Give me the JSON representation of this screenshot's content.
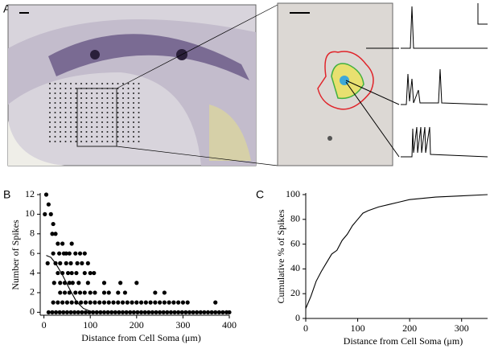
{
  "panel_labels": [
    "A",
    "B",
    "C"
  ],
  "chart_data": [
    {
      "type": "scatter",
      "xlabel": "Distance from Cell Soma (μm)",
      "ylabel": "Number of Spikes",
      "xlim": [
        -8,
        400
      ],
      "xticks": [
        0,
        100,
        200,
        300,
        400
      ],
      "ylim": [
        -0.3,
        12
      ],
      "yticks": [
        0,
        2,
        4,
        6,
        8,
        10,
        12
      ],
      "series": [
        {
          "kind": "markers",
          "color": "#000000",
          "x": [
            10,
            18,
            26,
            34,
            42,
            50,
            58,
            66,
            74,
            82,
            90,
            98,
            106,
            114,
            122,
            130,
            138,
            146,
            154,
            162,
            170,
            178,
            186,
            194,
            202,
            210,
            218,
            226,
            234,
            242,
            250,
            258,
            266,
            274,
            282,
            290,
            298,
            306,
            314,
            322,
            330,
            338,
            346,
            354,
            362,
            370,
            378,
            386,
            394,
            400,
            20,
            30,
            40,
            50,
            60,
            70,
            80,
            90,
            100,
            110,
            120,
            130,
            140,
            150,
            160,
            170,
            180,
            190,
            200,
            210,
            220,
            230,
            240,
            250,
            260,
            270,
            280,
            290,
            300,
            310,
            370,
            35,
            45,
            55,
            68,
            78,
            88,
            100,
            110,
            130,
            140,
            160,
            175,
            240,
            260,
            22,
            35,
            45,
            55,
            62,
            75,
            95,
            130,
            165,
            200,
            30,
            40,
            52,
            60,
            70,
            88,
            100,
            108,
            8,
            25,
            35,
            48,
            58,
            72,
            82,
            95,
            20,
            33,
            43,
            48,
            55,
            68,
            78,
            88,
            30,
            40,
            60,
            18,
            25,
            20,
            2,
            15,
            10,
            5
          ],
          "values": [
            0,
            0,
            0,
            0,
            0,
            0,
            0,
            0,
            0,
            0,
            0,
            0,
            0,
            0,
            0,
            0,
            0,
            0,
            0,
            0,
            0,
            0,
            0,
            0,
            0,
            0,
            0,
            0,
            0,
            0,
            0,
            0,
            0,
            0,
            0,
            0,
            0,
            0,
            0,
            0,
            0,
            0,
            0,
            0,
            0,
            0,
            0,
            0,
            0,
            0,
            1,
            1,
            1,
            1,
            1,
            1,
            1,
            1,
            1,
            1,
            1,
            1,
            1,
            1,
            1,
            1,
            1,
            1,
            1,
            1,
            1,
            1,
            1,
            1,
            1,
            1,
            1,
            1,
            1,
            1,
            1,
            2,
            2,
            2,
            2,
            2,
            2,
            2,
            2,
            2,
            2,
            2,
            2,
            2,
            2,
            3,
            3,
            3,
            3,
            3,
            3,
            3,
            3,
            3,
            3,
            4,
            4,
            4,
            4,
            4,
            4,
            4,
            4,
            5,
            5,
            5,
            5,
            5,
            5,
            5,
            5,
            6,
            6,
            6,
            6,
            6,
            6,
            6,
            6,
            7,
            7,
            7,
            8,
            8,
            9,
            10,
            10,
            11,
            12
          ]
        },
        {
          "kind": "line",
          "color": "#000000",
          "x": [
            5,
            15,
            25,
            40,
            55,
            70,
            85,
            100,
            120,
            150
          ],
          "values": [
            5.8,
            5.6,
            5.0,
            3.8,
            2.4,
            1.1,
            0.4,
            0.1,
            0,
            0
          ]
        }
      ]
    },
    {
      "type": "line",
      "xlabel": "Distance from Cell Soma (μm)",
      "ylabel": "Cumulative % of Spikes",
      "xlim": [
        0,
        350
      ],
      "xticks": [
        0,
        100,
        200,
        300
      ],
      "ylim": [
        0,
        100
      ],
      "yticks": [
        0,
        20,
        40,
        60,
        80,
        100
      ],
      "series": [
        {
          "kind": "line",
          "color": "#000000",
          "x": [
            0,
            10,
            20,
            30,
            40,
            50,
            60,
            70,
            80,
            90,
            100,
            110,
            120,
            140,
            160,
            180,
            200,
            250,
            300,
            350
          ],
          "values": [
            8,
            18,
            30,
            38,
            45,
            52,
            55,
            63,
            68,
            75,
            80,
            85,
            87,
            90,
            92,
            94,
            96,
            98,
            99,
            100
          ]
        }
      ]
    }
  ]
}
